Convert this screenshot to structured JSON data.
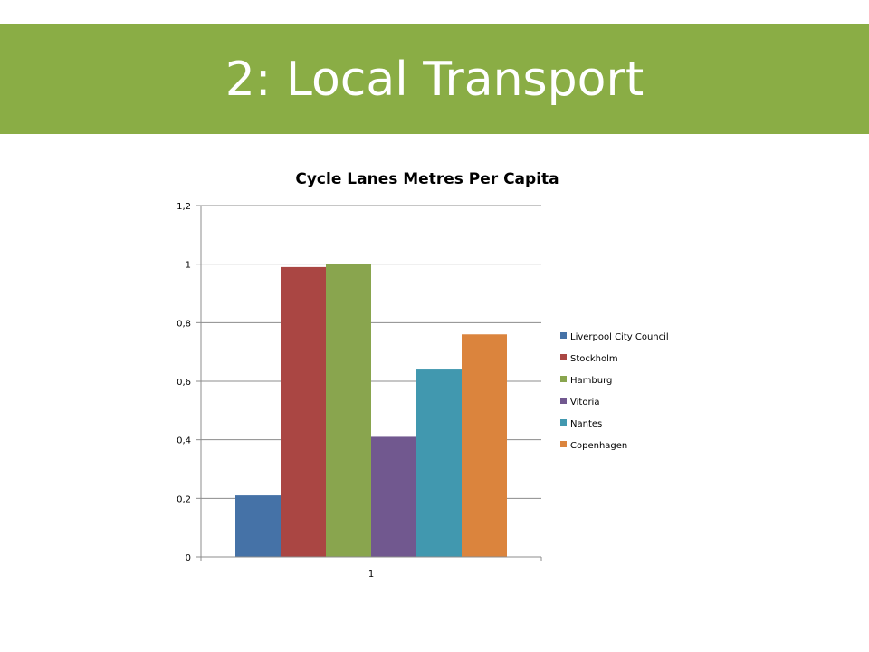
{
  "slide": {
    "title": "2: Local Transport"
  },
  "colors": {
    "banner": "#8aad45",
    "title_text": "#ffffff"
  },
  "chart_data": {
    "type": "bar",
    "title": "Cycle Lanes Metres Per Capita",
    "categories": [
      "1"
    ],
    "series": [
      {
        "name": "Liverpool City Council",
        "values": [
          0.21
        ],
        "color": "#4572a7"
      },
      {
        "name": "Stockholm",
        "values": [
          0.99
        ],
        "color": "#aa4643"
      },
      {
        "name": "Hamburg",
        "values": [
          1.0
        ],
        "color": "#89a54e"
      },
      {
        "name": "Vitoria",
        "values": [
          0.41
        ],
        "color": "#71588f"
      },
      {
        "name": "Nantes",
        "values": [
          0.64
        ],
        "color": "#4198af"
      },
      {
        "name": "Copenhagen",
        "values": [
          0.76
        ],
        "color": "#db843d"
      }
    ],
    "ylim": [
      0,
      1.2
    ],
    "yticks": [
      "0",
      "0,2",
      "0,4",
      "0,6",
      "0,8",
      "1",
      "1,2"
    ],
    "xlabel": "",
    "ylabel": "",
    "grid": true,
    "legend": "right"
  }
}
